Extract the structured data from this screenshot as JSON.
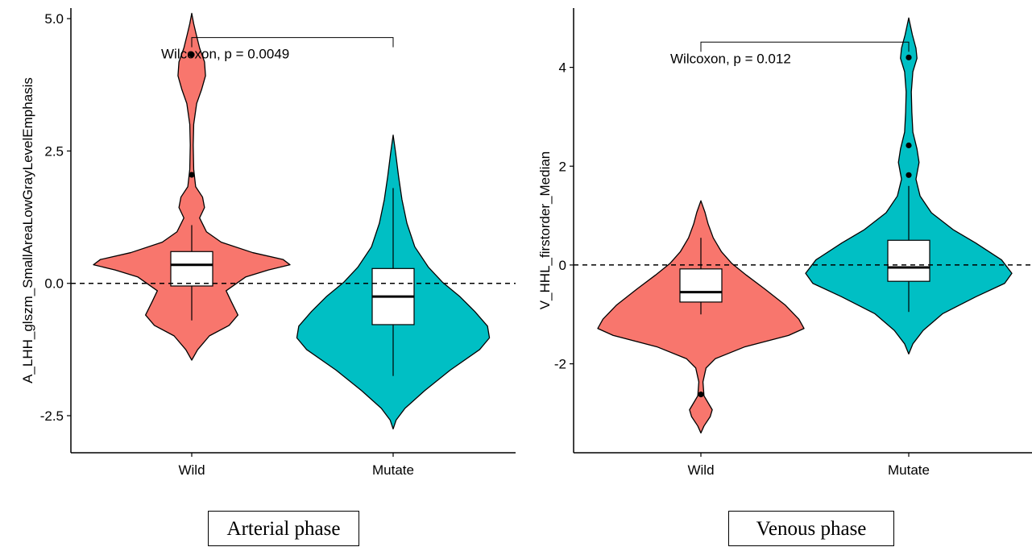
{
  "chart_data": [
    {
      "type": "violin",
      "caption": "Arterial phase",
      "ylabel": "A_LHH_glszm_SmallAreaLowGrayLevelEmphasis",
      "xlabel": "",
      "categories": [
        "Wild",
        "Mutate"
      ],
      "yticks": [
        5.0,
        2.5,
        0.0,
        -2.5
      ],
      "ytick_labels": [
        "5.0",
        "2.5",
        "0.0",
        "-2.5"
      ],
      "ylim": [
        -3.2,
        5.2
      ],
      "reference_line": 0,
      "annotation": "Wilcoxon, p = 0.0049",
      "groups": [
        {
          "name": "Wild",
          "color": "#F8766D",
          "violin_range": [
            -1.45,
            5.1
          ],
          "box": {
            "q1": -0.05,
            "median": 0.35,
            "q3": 0.6,
            "whisker_low": -0.7,
            "whisker_high": 1.1
          },
          "outliers": [
            4.32,
            2.05
          ]
        },
        {
          "name": "Mutate",
          "color": "#00BFC4",
          "violin_range": [
            -2.75,
            2.8
          ],
          "box": {
            "q1": -0.78,
            "median": -0.25,
            "q3": 0.28,
            "whisker_low": -1.75,
            "whisker_high": 1.8
          },
          "outliers": []
        }
      ]
    },
    {
      "type": "violin",
      "caption": "Venous phase",
      "ylabel": "V_HHL_firstorder_Median",
      "xlabel": "",
      "categories": [
        "Wild",
        "Mutate"
      ],
      "yticks": [
        4,
        2,
        0,
        -2
      ],
      "ytick_labels": [
        "4",
        "2",
        "0",
        "-2"
      ],
      "ylim": [
        -3.8,
        5.2
      ],
      "reference_line": 0,
      "annotation": "Wilcoxon, p = 0.012",
      "groups": [
        {
          "name": "Wild",
          "color": "#F8766D",
          "violin_range": [
            -3.4,
            1.3
          ],
          "box": {
            "q1": -0.75,
            "median": -0.55,
            "q3": -0.08,
            "whisker_low": -1.0,
            "whisker_high": 0.55
          },
          "outliers": [
            -2.62
          ]
        },
        {
          "name": "Mutate",
          "color": "#00BFC4",
          "violin_range": [
            -1.8,
            5.0
          ],
          "box": {
            "q1": -0.33,
            "median": -0.05,
            "q3": 0.5,
            "whisker_low": -0.95,
            "whisker_high": 1.6
          },
          "outliers": [
            4.2,
            2.42,
            1.82
          ]
        }
      ]
    }
  ]
}
